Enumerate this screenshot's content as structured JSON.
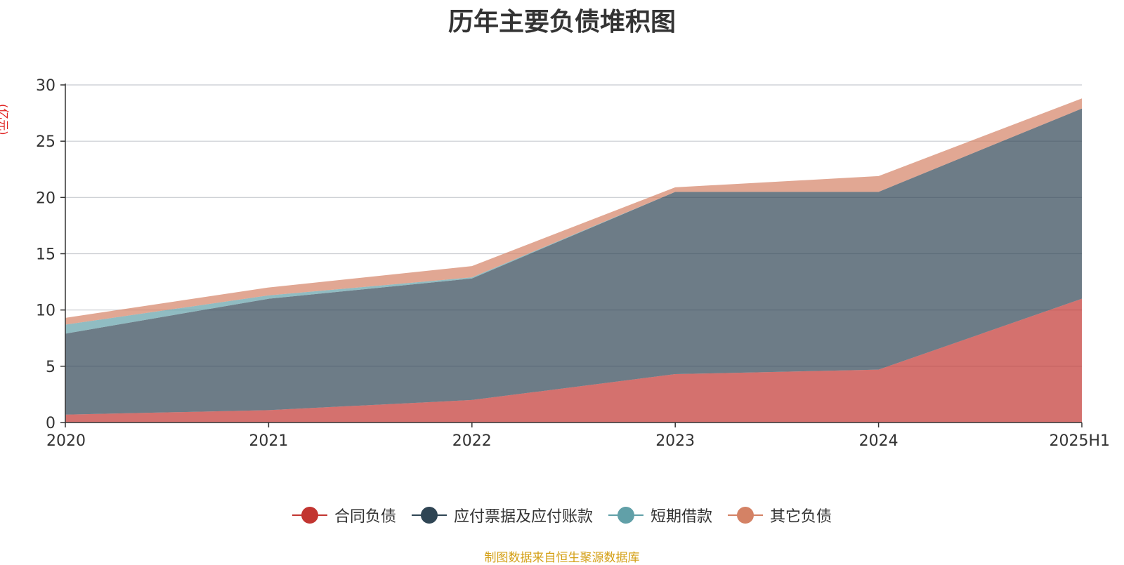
{
  "chart_data": {
    "type": "area",
    "stacked": true,
    "title": "历年主要负债堆积图",
    "unit": "(亿元)",
    "categories": [
      "2020",
      "2021",
      "2022",
      "2023",
      "2024",
      "2025H1"
    ],
    "ylim": [
      0,
      30
    ],
    "yticks": [
      "0",
      "5",
      "10",
      "15",
      "20",
      "25",
      "30"
    ],
    "grid": true,
    "legend_position": "bottom",
    "series": [
      {
        "name": "合同负债",
        "color": "#c23531",
        "values": [
          0.7,
          1.1,
          2.0,
          4.3,
          4.7,
          11.0
        ]
      },
      {
        "name": "应付票据及应付账款",
        "color": "#2f4554",
        "values": [
          7.2,
          9.9,
          10.8,
          16.2,
          15.8,
          16.9
        ]
      },
      {
        "name": "短期借款",
        "color": "#61a0a8",
        "values": [
          0.8,
          0.3,
          0.1,
          0.0,
          0.0,
          0.0
        ]
      },
      {
        "name": "其它负债",
        "color": "#d48265",
        "values": [
          0.6,
          0.7,
          1.0,
          0.4,
          1.4,
          0.9
        ]
      }
    ]
  },
  "footnote": "制图数据来自恒生聚源数据库"
}
